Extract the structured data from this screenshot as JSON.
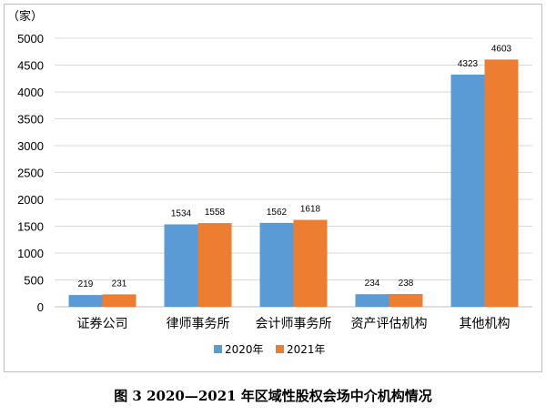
{
  "chart_data": {
    "type": "bar",
    "unit_label": "（家）",
    "categories": [
      "证券公司",
      "律师事务所",
      "会计师事务所",
      "资产评估机构",
      "其他机构"
    ],
    "series": [
      {
        "name": "2020年",
        "values": [
          219,
          1534,
          1562,
          234,
          4323
        ],
        "color": "#5b9bd5"
      },
      {
        "name": "2021年",
        "values": [
          231,
          1558,
          1618,
          238,
          4603
        ],
        "color": "#ed7d31"
      }
    ],
    "ylim": [
      0,
      5000
    ],
    "yticks": [
      "0",
      "500",
      "1000",
      "1500",
      "2000",
      "2500",
      "3000",
      "3500",
      "4000",
      "4500",
      "5000"
    ],
    "grid": true,
    "legend_position": "bottom"
  },
  "caption": "图 3  2020—2021 年区域性股权会场中介机构情况"
}
